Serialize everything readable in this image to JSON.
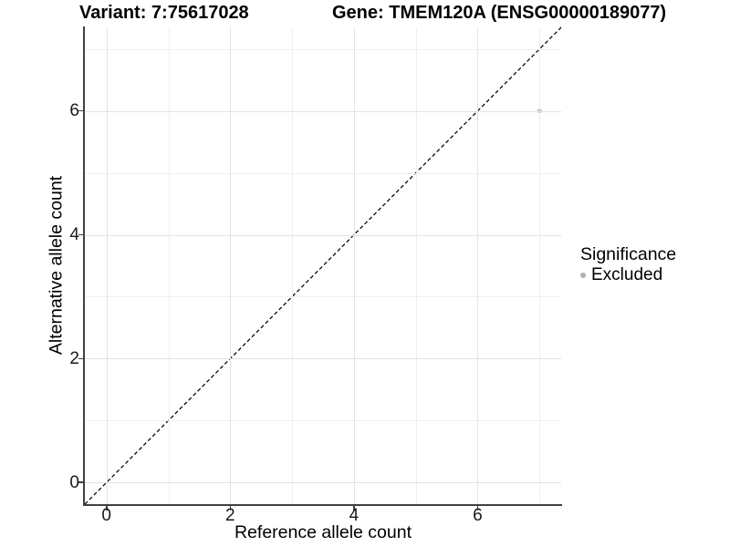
{
  "titles": {
    "left": "Variant: 7:75617028",
    "right": "Gene: TMEM120A (ENSG00000189077)"
  },
  "chart_data": {
    "type": "scatter",
    "xlabel": "Reference allele count",
    "ylabel": "Alternative allele count",
    "xlim": [
      -0.35,
      7.35
    ],
    "ylim": [
      -0.35,
      7.35
    ],
    "x_ticks": [
      0,
      2,
      4,
      6
    ],
    "y_ticks": [
      0,
      2,
      4,
      6
    ],
    "x_grid_minor": [
      1,
      3,
      5,
      7
    ],
    "y_grid_minor": [
      1,
      3,
      5,
      7
    ],
    "grid": "on",
    "reference_line": {
      "type": "identity y=x",
      "style": "dashed",
      "color": "#000000"
    },
    "series": [
      {
        "name": "Excluded",
        "color": "#b3b3b3",
        "points": [
          {
            "x": 7,
            "y": 6
          }
        ]
      }
    ],
    "legend": {
      "title": "Significance",
      "position": "right",
      "items": [
        {
          "label": "Excluded",
          "color": "#b0b0b0"
        }
      ]
    }
  }
}
